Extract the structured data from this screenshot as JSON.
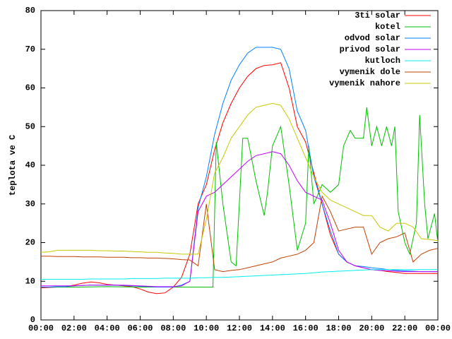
{
  "chart_data": {
    "type": "line",
    "ylabel": "teplota ve C",
    "xlim": [
      0,
      24
    ],
    "ylim": [
      0,
      80
    ],
    "yticks": [
      0,
      10,
      20,
      30,
      40,
      50,
      60,
      70,
      80
    ],
    "xticks": [
      {
        "value": 0,
        "label": "00:00"
      },
      {
        "value": 2,
        "label": "02:00"
      },
      {
        "value": 4,
        "label": "04:00"
      },
      {
        "value": 6,
        "label": "06:00"
      },
      {
        "value": 8,
        "label": "08:00"
      },
      {
        "value": 10,
        "label": "10:00"
      },
      {
        "value": 12,
        "label": "12:00"
      },
      {
        "value": 14,
        "label": "14:00"
      },
      {
        "value": 16,
        "label": "16:00"
      },
      {
        "value": 18,
        "label": "18:00"
      },
      {
        "value": 20,
        "label": "20:00"
      },
      {
        "value": 22,
        "label": "22:00"
      },
      {
        "value": 24,
        "label": "00:00"
      }
    ],
    "legend": "top-right",
    "x": [
      0,
      0.5,
      1,
      1.5,
      2,
      2.5,
      3,
      3.5,
      4,
      4.5,
      5,
      5.5,
      6,
      6.5,
      7,
      7.5,
      8,
      8.5,
      9,
      9.5,
      10,
      10.5,
      11,
      11.5,
      12,
      12.5,
      13,
      13.5,
      14,
      14.5,
      15,
      15.5,
      16,
      16.5,
      17,
      17.5,
      18,
      18.5,
      19,
      19.5,
      20,
      20.5,
      21,
      21.5,
      22,
      22.5,
      23,
      23.5,
      24
    ],
    "series": [
      {
        "name": "3ti solar",
        "color": "#ff0000",
        "values": [
          8.3,
          8.4,
          8.5,
          8.6,
          9,
          9.5,
          9.8,
          9.6,
          9.2,
          9,
          8.8,
          8.6,
          8,
          7.2,
          6.8,
          7,
          8.5,
          11,
          17,
          30,
          35,
          44,
          51,
          56,
          60,
          63,
          65,
          65.8,
          66,
          66.5,
          60,
          50,
          46,
          38,
          30,
          22,
          17,
          15,
          14,
          13.5,
          13,
          12.8,
          12.5,
          12.3,
          12,
          12,
          12,
          12,
          12
        ]
      },
      {
        "name": "kotel",
        "color": "#00c000",
        "x": [
          0,
          2,
          4,
          6,
          8,
          9,
          10,
          10.4,
          10.6,
          11,
          11.5,
          11.8,
          12.2,
          12.5,
          13,
          13.5,
          13.7,
          14,
          14.5,
          15,
          15.5,
          16,
          16.2,
          16.5,
          17,
          17.5,
          18,
          18.3,
          18.7,
          19,
          19.5,
          19.7,
          20,
          20.3,
          20.6,
          20.9,
          21.2,
          21.4,
          21.6,
          22,
          22.3,
          22.7,
          22.9,
          23.2,
          23.4,
          23.8,
          24
        ],
        "values": [
          8.5,
          8.5,
          8.6,
          8.5,
          8.5,
          8.5,
          8.5,
          8.5,
          46,
          30,
          15,
          14,
          47,
          47,
          36,
          27,
          33,
          45,
          50,
          35,
          18,
          25,
          45,
          30,
          35,
          33,
          35,
          45,
          49,
          47,
          47,
          55,
          45,
          50,
          45,
          50,
          45,
          50,
          28,
          20,
          17,
          25,
          53,
          30,
          21,
          27.5,
          20
        ]
      },
      {
        "name": "odvod solar",
        "color": "#0080ff",
        "values": [
          8.5,
          8.5,
          8.6,
          8.6,
          8.8,
          8.9,
          9,
          9,
          9,
          9,
          8.9,
          8.8,
          8.7,
          8.6,
          8.5,
          8.5,
          8.5,
          9,
          10,
          29,
          37,
          48,
          56,
          62,
          66,
          69,
          70.5,
          70.5,
          70.5,
          70,
          65,
          54,
          49,
          37,
          30,
          23,
          17,
          15,
          14,
          13.8,
          13.5,
          13.3,
          13,
          12.8,
          12.7,
          12.6,
          12.5,
          12.5,
          12.5
        ]
      },
      {
        "name": "privod solar",
        "color": "#c000ff",
        "values": [
          8.8,
          8.8,
          8.8,
          8.8,
          8.8,
          8.9,
          9,
          9,
          9,
          9,
          9,
          8.9,
          8.8,
          8.7,
          8.6,
          8.6,
          8.6,
          8.8,
          10,
          28,
          32,
          33,
          35,
          37,
          39,
          41,
          42.5,
          43,
          43.5,
          43,
          40,
          36,
          33,
          32,
          31,
          25,
          18,
          15,
          14,
          13.5,
          13,
          12.8,
          12.7,
          12.6,
          12.5,
          12.5,
          12.5,
          12.5,
          12.5
        ]
      },
      {
        "name": "kutloch",
        "color": "#00eeee",
        "values": [
          10.5,
          10.5,
          10.5,
          10.5,
          10.5,
          10.5,
          10.6,
          10.6,
          10.6,
          10.6,
          10.6,
          10.7,
          10.7,
          10.7,
          10.7,
          10.8,
          10.8,
          10.8,
          10.8,
          10.9,
          10.9,
          11,
          11,
          11.1,
          11.2,
          11.3,
          11.4,
          11.5,
          11.6,
          11.7,
          11.8,
          11.9,
          12,
          12.2,
          12.4,
          12.5,
          12.6,
          12.7,
          12.8,
          12.9,
          13,
          13,
          13,
          13,
          13,
          13,
          13,
          13,
          13
        ]
      },
      {
        "name": "vymenik dole",
        "color": "#c04000",
        "values": [
          16.5,
          16.5,
          16.4,
          16.4,
          16.4,
          16.3,
          16.3,
          16.3,
          16.2,
          16.2,
          16.2,
          16.1,
          16.1,
          16,
          16,
          15.9,
          15.8,
          15.6,
          15.5,
          14,
          30,
          13,
          12.5,
          12.8,
          13,
          13.5,
          14,
          14.5,
          15,
          16,
          16.5,
          17,
          18,
          20,
          32,
          28,
          23,
          23.5,
          24,
          24,
          17,
          20,
          21,
          21.5,
          22.5,
          15,
          17,
          18,
          18.5
        ]
      },
      {
        "name": "vymenik nahore",
        "color": "#c8c800",
        "values": [
          17.5,
          17.6,
          18,
          18,
          18,
          18,
          18,
          17.9,
          17.9,
          17.8,
          17.8,
          17.7,
          17.6,
          17.5,
          17.5,
          17.3,
          17.2,
          17,
          17,
          17,
          26,
          38,
          42,
          47,
          50,
          53,
          55,
          55.5,
          56,
          55.5,
          52,
          47,
          42,
          37,
          33,
          31,
          30,
          29,
          28,
          27,
          27,
          24,
          23,
          25,
          25,
          24,
          21,
          20.8,
          20.5
        ]
      }
    ]
  }
}
